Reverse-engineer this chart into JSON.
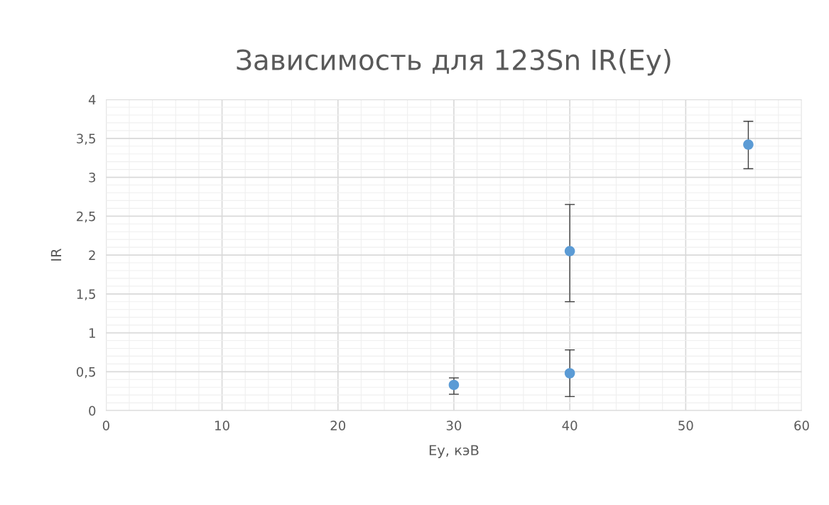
{
  "chart_data": {
    "type": "scatter",
    "title": "Зависимость для 123Sn IR(Eу)",
    "xlabel": "Eу, кэВ",
    "ylabel": "IR",
    "x": [
      30,
      40,
      40,
      55.4
    ],
    "series": [
      {
        "color": "#5b9bd5",
        "values": [
          0.33,
          0.48,
          2.05,
          3.42
        ],
        "errors": [
          [
            0.21,
            0.42
          ],
          [
            0.18,
            0.78
          ],
          [
            1.4,
            2.65
          ],
          [
            3.11,
            3.72
          ]
        ]
      }
    ],
    "xlim": [
      0,
      60
    ],
    "xticks": [
      0,
      10,
      20,
      30,
      40,
      50,
      60
    ],
    "ylim": [
      0,
      4
    ],
    "yticks": [
      0,
      {
        "value": 0.5,
        "label": "0,5"
      },
      1,
      {
        "value": 1.5,
        "label": "1,5"
      },
      2,
      {
        "value": 2.5,
        "label": "2,5"
      },
      3,
      {
        "value": 3.5,
        "label": "3,5"
      },
      4
    ],
    "grid": true,
    "marker": "circle",
    "legend": false
  }
}
